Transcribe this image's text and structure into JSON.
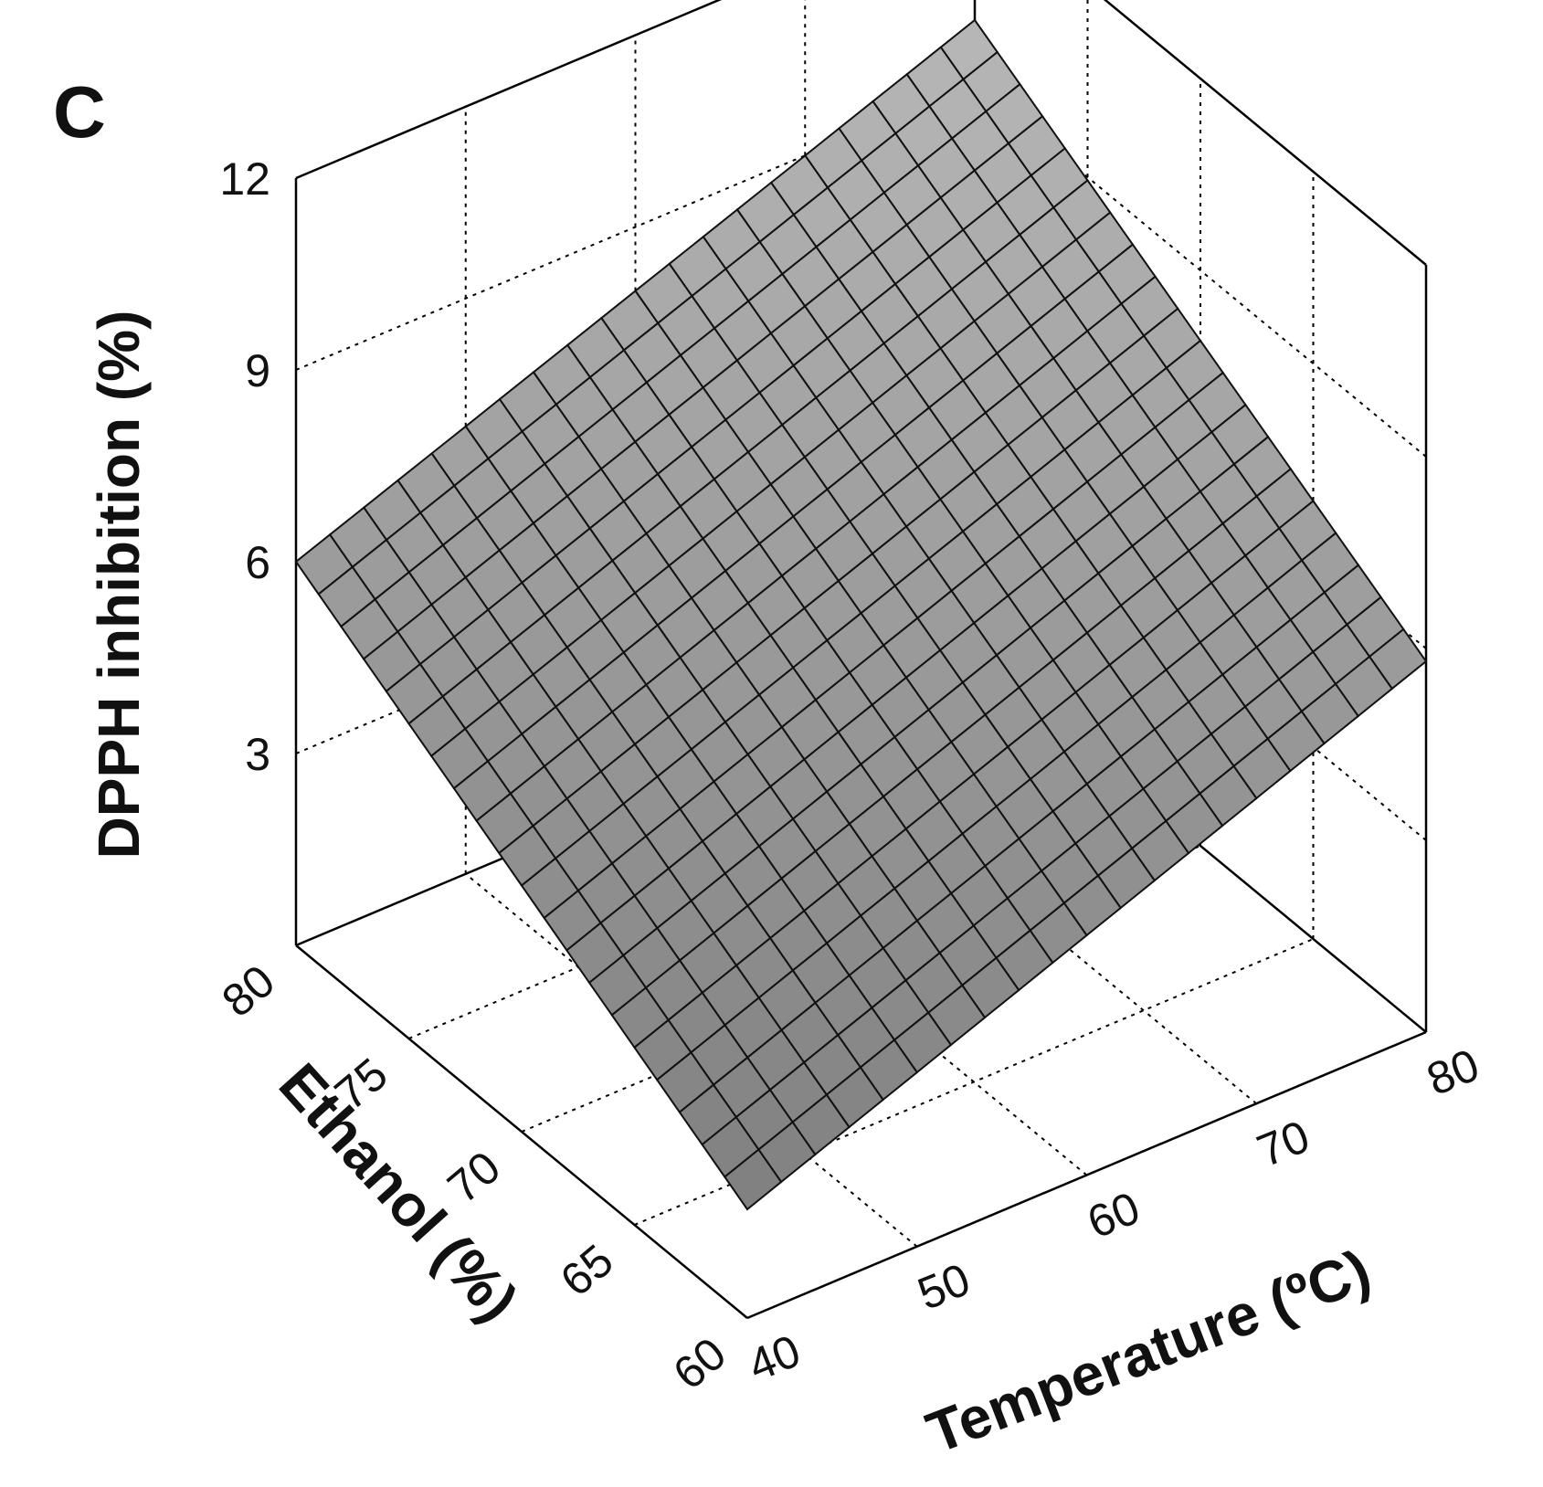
{
  "panel_label": "C",
  "chart_data": {
    "type": "surface",
    "x": {
      "label": "Temperature (ºC)",
      "range": [
        40,
        80
      ],
      "ticks": [
        40,
        50,
        60,
        70,
        80
      ]
    },
    "y": {
      "label": "Ethanol (%)",
      "range": [
        60,
        80
      ],
      "ticks": [
        60,
        65,
        70,
        75,
        80
      ]
    },
    "z": {
      "label": "DPPH inhibition (%)",
      "range": [
        0,
        12
      ],
      "ticks": [
        3,
        6,
        9,
        12
      ]
    },
    "grid": true,
    "surface_model": {
      "form": "planar",
      "corner_values": [
        {
          "temperature": 40,
          "ethanol": 60,
          "dpph": 1.7
        },
        {
          "temperature": 80,
          "ethanol": 60,
          "dpph": 5.8
        },
        {
          "temperature": 40,
          "ethanol": 80,
          "dpph": 6.0
        },
        {
          "temperature": 80,
          "ethanol": 80,
          "dpph": 10.0
        }
      ]
    },
    "surface_color": "#9a9a9a"
  }
}
